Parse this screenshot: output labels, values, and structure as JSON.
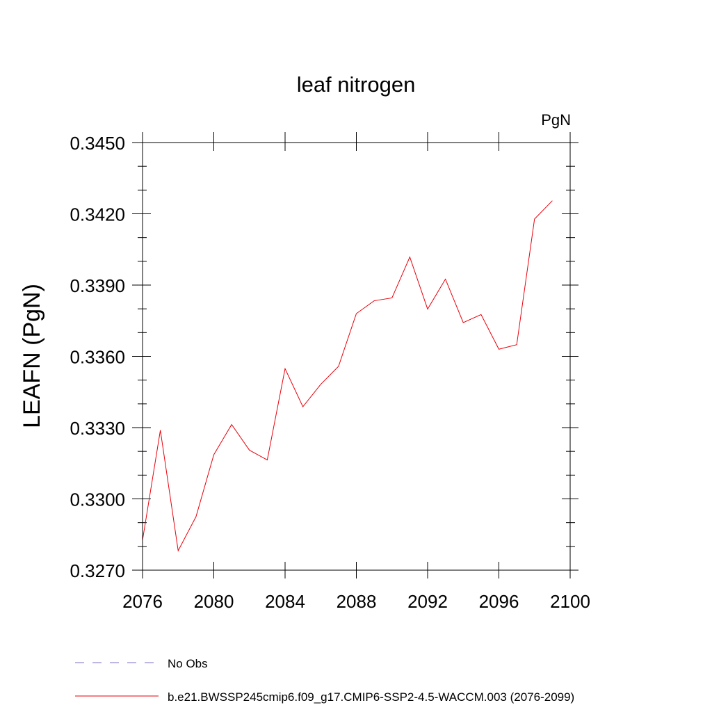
{
  "chart_data": {
    "type": "line",
    "title": "leaf nitrogen",
    "units": "PgN",
    "ylabel": "LEAFN  (PgN)",
    "xlabel": "",
    "xlim": [
      2076,
      2100
    ],
    "ylim": [
      0.327,
      0.345
    ],
    "xticks": [
      2076,
      2080,
      2084,
      2088,
      2092,
      2096,
      2100
    ],
    "xtick_labels": [
      "2076",
      "2080",
      "2084",
      "2088",
      "2092",
      "2096",
      "2100"
    ],
    "yticks": [
      0.327,
      0.33,
      0.333,
      0.336,
      0.339,
      0.342,
      0.345
    ],
    "ytick_labels": [
      "0.3270",
      "0.3300",
      "0.3330",
      "0.3360",
      "0.3390",
      "0.3420",
      "0.3450"
    ],
    "grid": false,
    "legend_position": "bottom",
    "series": [
      {
        "name": "b.e21.BWSSP245cmip6.f09_g17.CMIP6-SSP2-4.5-WACCM.003 (2076-2099)",
        "color": "#e8000b",
        "dash": "solid",
        "x": [
          2076,
          2077,
          2078,
          2079,
          2080,
          2081,
          2082,
          2083,
          2084,
          2085,
          2086,
          2087,
          2088,
          2089,
          2090,
          2091,
          2092,
          2093,
          2094,
          2095,
          2096,
          2097,
          2098,
          2099
        ],
        "y": [
          0.32826,
          0.33289,
          0.32782,
          0.32925,
          0.33186,
          0.33313,
          0.33205,
          0.33164,
          0.33548,
          0.33388,
          0.33482,
          0.33558,
          0.3378,
          0.33834,
          0.33846,
          0.34018,
          0.33799,
          0.33925,
          0.33742,
          0.33776,
          0.3363,
          0.33649,
          0.34178,
          0.34255
        ]
      }
    ],
    "legend": [
      {
        "label": "No Obs",
        "color": "#7b6fc7",
        "dash": "dashed"
      },
      {
        "label": "b.e21.BWSSP245cmip6.f09_g17.CMIP6-SSP2-4.5-WACCM.003 (2076-2099)",
        "color": "#e8000b",
        "dash": "solid"
      }
    ]
  }
}
